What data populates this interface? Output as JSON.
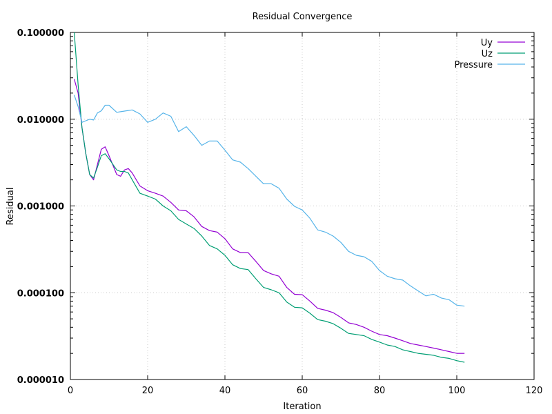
{
  "chart_data": {
    "type": "line",
    "title": "Residual Convergence",
    "xlabel": "Iteration",
    "ylabel": "Residual",
    "xlim": [
      0,
      120
    ],
    "ylim": [
      1e-05,
      0.1
    ],
    "y_scale": "log",
    "grid": true,
    "legend_position": "top-right",
    "x_ticks": [
      "0",
      "20",
      "40",
      "60",
      "80",
      "100",
      "120"
    ],
    "x_tick_values": [
      0,
      20,
      40,
      60,
      80,
      100,
      120
    ],
    "y_ticks": [
      "0.000010",
      "0.000100",
      "0.001000",
      "0.010000",
      "0.100000"
    ],
    "y_tick_values": [
      1e-05,
      0.0001,
      0.001,
      0.01,
      0.1
    ],
    "x": [
      1,
      2,
      3,
      4,
      5,
      6,
      7,
      8,
      9,
      10,
      12,
      13,
      14,
      15,
      16,
      18,
      20,
      22,
      24,
      26,
      28,
      30,
      32,
      34,
      36,
      38,
      40,
      42,
      44,
      46,
      48,
      50,
      52,
      54,
      56,
      58,
      60,
      62,
      64,
      66,
      68,
      70,
      72,
      74,
      76,
      78,
      80,
      82,
      84,
      86,
      88,
      90,
      92,
      94,
      96,
      98,
      100,
      102
    ],
    "series": [
      {
        "name": "Uy",
        "color": "#9400d3",
        "values": [
          0.029,
          0.02,
          0.008,
          0.004,
          0.0023,
          0.002,
          0.003,
          0.0045,
          0.0048,
          0.0038,
          0.0023,
          0.0022,
          0.0026,
          0.0027,
          0.0024,
          0.0017,
          0.0015,
          0.0014,
          0.0013,
          0.0011,
          0.0009,
          0.00088,
          0.00075,
          0.00058,
          0.00052,
          0.0005,
          0.00042,
          0.00032,
          0.00029,
          0.00029,
          0.00023,
          0.00018,
          0.000165,
          0.000155,
          0.000115,
          9.6e-05,
          9.5e-05,
          8e-05,
          6.6e-05,
          6.3e-05,
          5.9e-05,
          5.2e-05,
          4.5e-05,
          4.3e-05,
          4e-05,
          3.6e-05,
          3.3e-05,
          3.2e-05,
          3e-05,
          2.8e-05,
          2.6e-05,
          2.5e-05,
          2.4e-05,
          2.3e-05,
          2.2e-05,
          2.1e-05,
          2e-05,
          2e-05
        ]
      },
      {
        "name": "Uz",
        "color": "#009e73",
        "values": [
          0.1,
          0.025,
          0.008,
          0.004,
          0.0023,
          0.0021,
          0.0028,
          0.0038,
          0.004,
          0.0035,
          0.0026,
          0.0025,
          0.0025,
          0.0024,
          0.002,
          0.0014,
          0.0013,
          0.0012,
          0.001,
          0.00088,
          0.0007,
          0.00062,
          0.00055,
          0.00045,
          0.00035,
          0.00032,
          0.00027,
          0.00021,
          0.00019,
          0.000185,
          0.000145,
          0.000115,
          0.000108,
          0.0001,
          7.8e-05,
          6.8e-05,
          6.7e-05,
          5.8e-05,
          4.9e-05,
          4.7e-05,
          4.4e-05,
          3.9e-05,
          3.4e-05,
          3.3e-05,
          3.2e-05,
          2.9e-05,
          2.7e-05,
          2.5e-05,
          2.4e-05,
          2.2e-05,
          2.1e-05,
          2e-05,
          1.95e-05,
          1.9e-05,
          1.8e-05,
          1.75e-05,
          1.65e-05,
          1.58e-05
        ]
      },
      {
        "name": "Pressure",
        "color": "#56b4e9",
        "values": [
          0.019,
          0.014,
          0.0092,
          0.0096,
          0.01,
          0.0098,
          0.0118,
          0.0125,
          0.0145,
          0.0145,
          0.012,
          0.0122,
          0.0124,
          0.0126,
          0.0128,
          0.0115,
          0.0092,
          0.01,
          0.0118,
          0.0108,
          0.0072,
          0.0082,
          0.0065,
          0.005,
          0.0056,
          0.0056,
          0.0044,
          0.0034,
          0.0032,
          0.0027,
          0.0022,
          0.0018,
          0.0018,
          0.0016,
          0.0012,
          0.00099,
          0.0009,
          0.00072,
          0.00053,
          0.0005,
          0.00045,
          0.00038,
          0.0003,
          0.00027,
          0.00026,
          0.00023,
          0.00018,
          0.000155,
          0.000145,
          0.00014,
          0.00012,
          0.000105,
          9.2e-05,
          9.6e-05,
          8.7e-05,
          8.3e-05,
          7.2e-05,
          7e-05
        ]
      }
    ]
  }
}
